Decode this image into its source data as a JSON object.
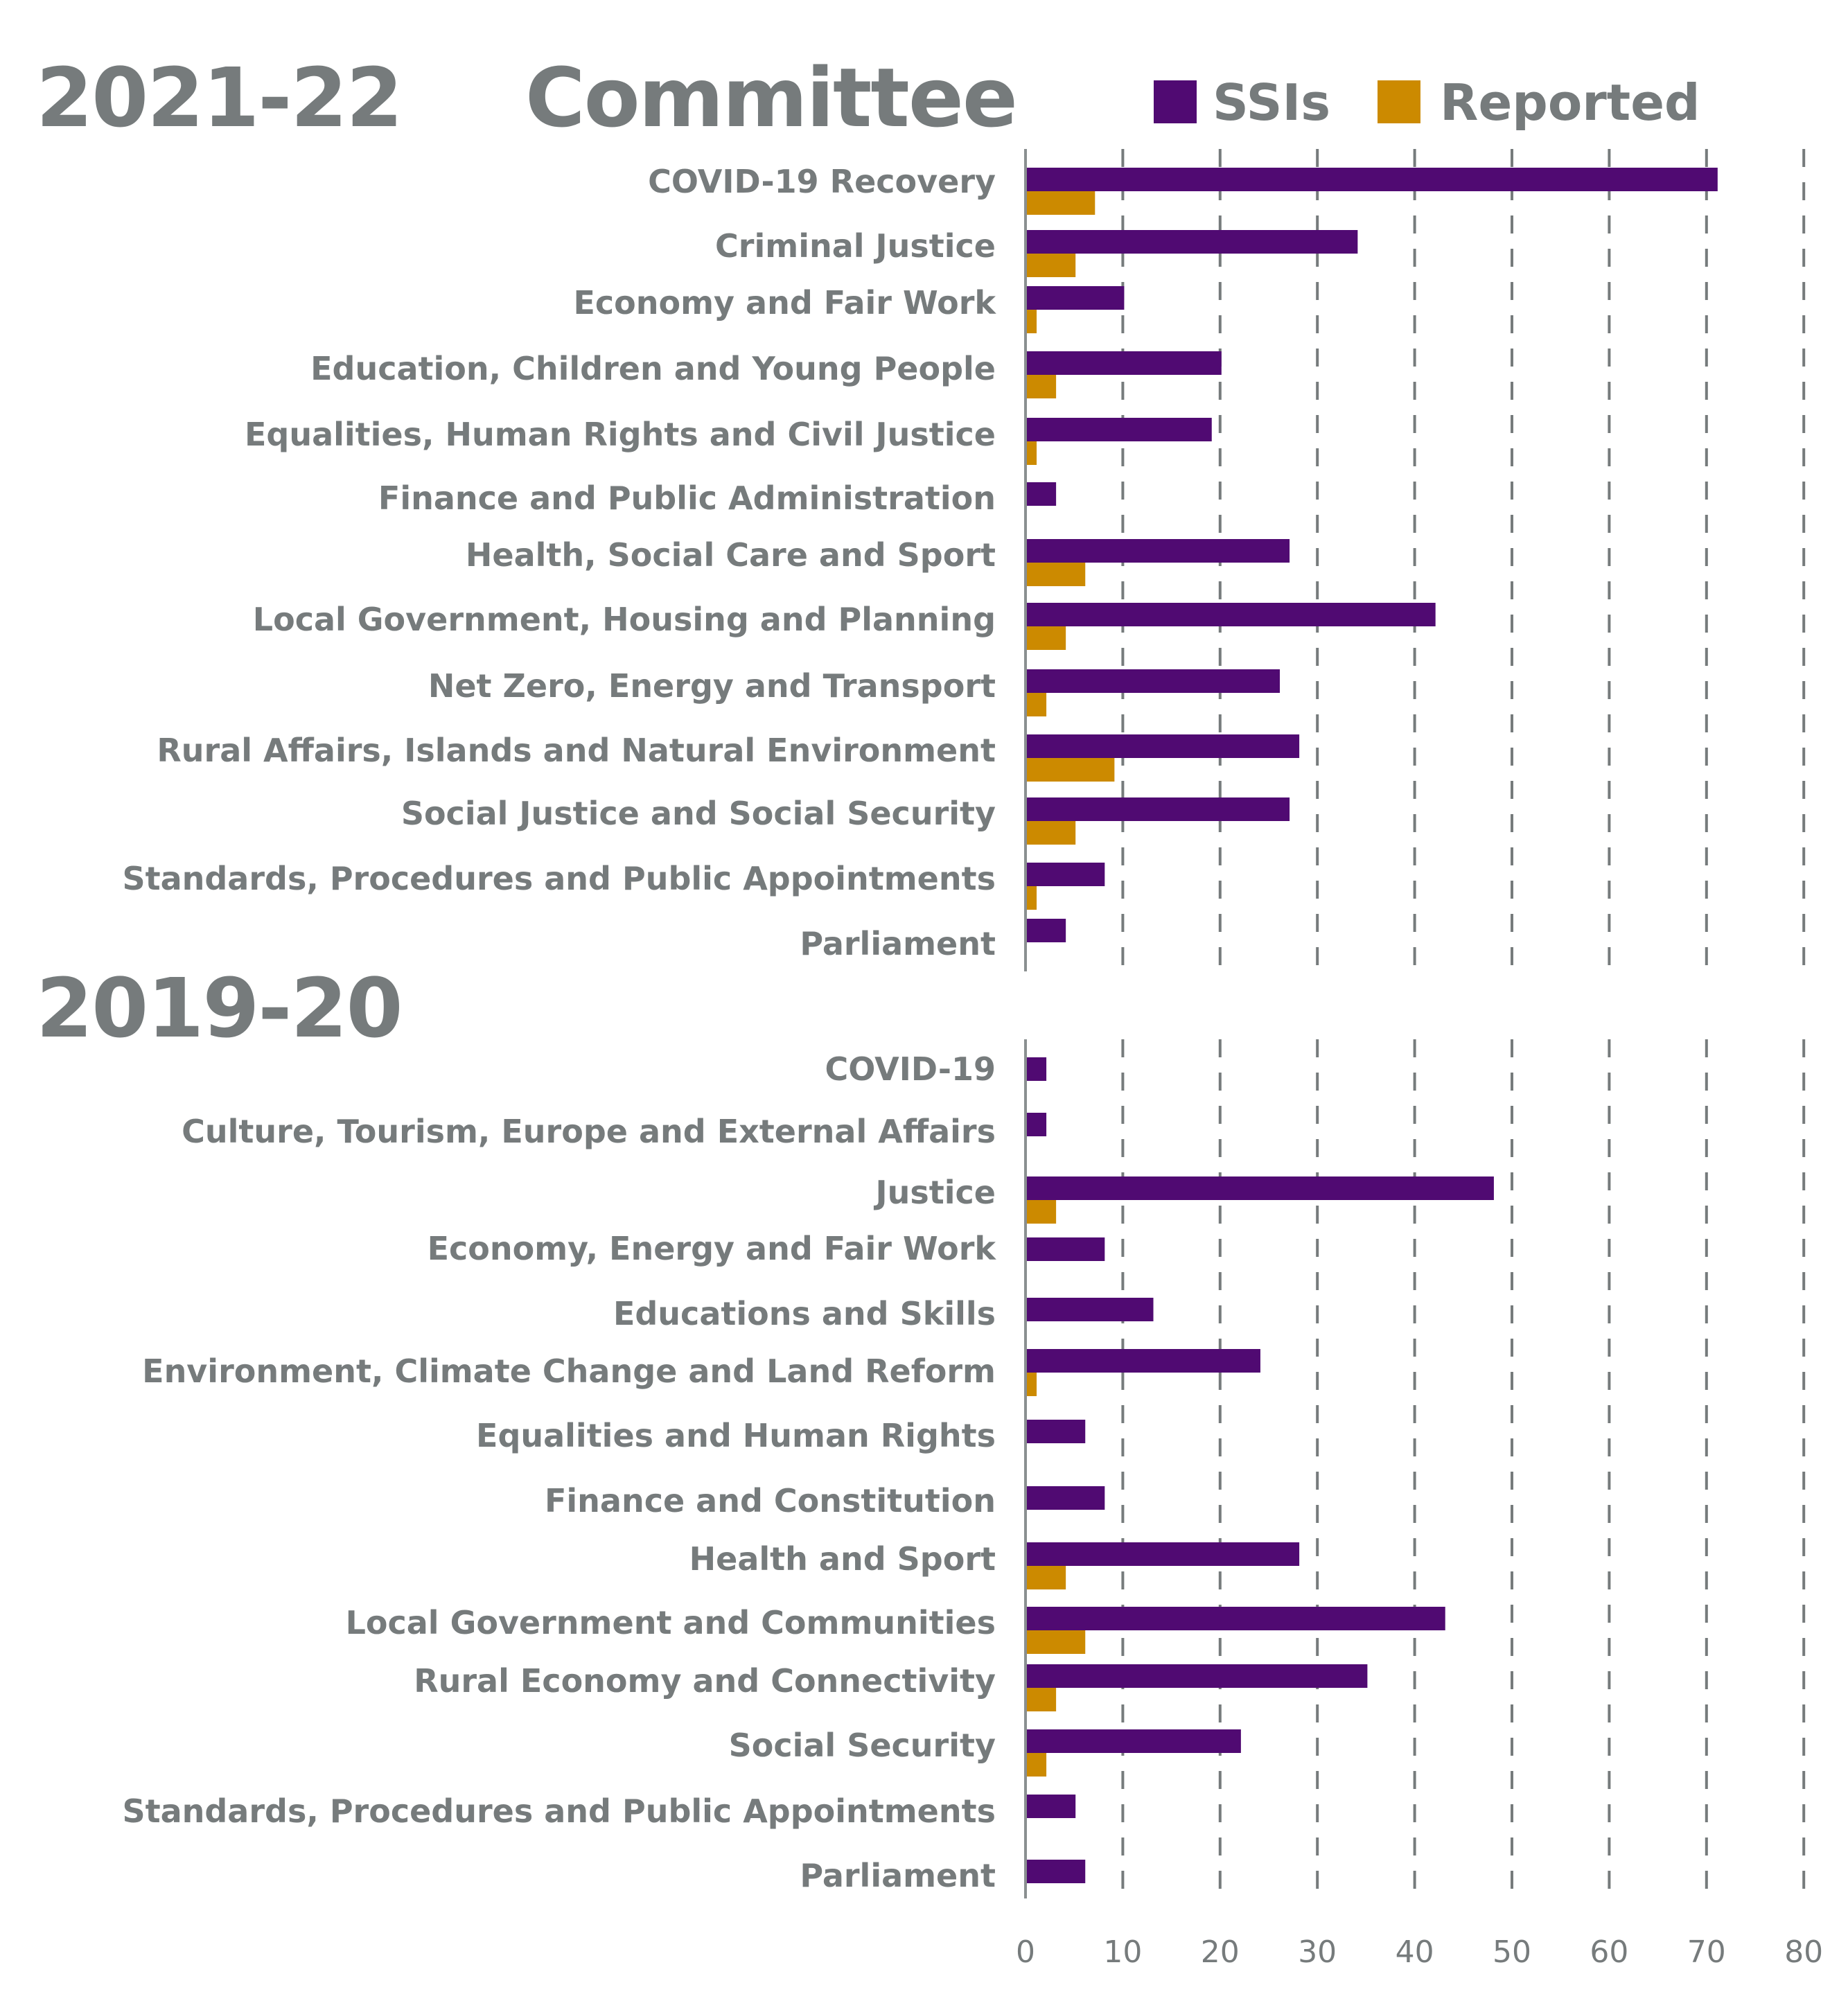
{
  "chart_data": [
    {
      "type": "bar",
      "orientation": "horizontal",
      "title": "2021-22",
      "categories": [
        "COVID-19 Recovery",
        "Criminal Justice",
        "Economy and Fair Work",
        "Education, Children and Young People",
        "Equalities, Human Rights and Civil Justice",
        "Finance and Public Administration",
        "Health, Social Care and Sport",
        "Local Government, Housing and Planning",
        "Net Zero, Energy and Transport",
        "Rural Affairs, Islands and Natural Environment",
        "Social Justice and Social Security",
        "Standards, Procedures and Public Appointments",
        "Parliament"
      ],
      "series": [
        {
          "name": "SSIs",
          "color": "#500a72",
          "values": [
            71,
            34,
            10,
            20,
            19,
            3,
            27,
            42,
            26,
            28,
            27,
            8,
            4
          ]
        },
        {
          "name": "Reported",
          "color": "#cc8a00",
          "values": [
            7,
            5,
            1,
            3,
            1,
            0,
            6,
            4,
            2,
            9,
            5,
            1,
            0
          ]
        }
      ],
      "xlim": [
        0,
        80
      ],
      "grid": true
    },
    {
      "type": "bar",
      "orientation": "horizontal",
      "title": "2019-20",
      "categories": [
        "COVID-19",
        "Culture, Tourism, Europe and External Affairs",
        "Justice",
        "Economy, Energy and Fair Work",
        "Educations and Skills",
        "Environment, Climate Change and Land Reform",
        "Equalities and Human Rights",
        "Finance and Constitution",
        "Health and Sport",
        "Local Government and Communities",
        "Rural Economy and Connectivity",
        "Social Security",
        "Standards, Procedures and Public Appointments",
        "Parliament "
      ],
      "series": [
        {
          "name": "SSIs",
          "color": "#500a72",
          "values": [
            2,
            2,
            48,
            8,
            13,
            24,
            6,
            8,
            28,
            43,
            35,
            22,
            5,
            6
          ]
        },
        {
          "name": "Reported",
          "color": "#cc8a00",
          "values": [
            0,
            0,
            3,
            0,
            0,
            1,
            0,
            0,
            4,
            6,
            3,
            2,
            0,
            0
          ]
        }
      ],
      "xlim": [
        0,
        80
      ],
      "xticks": [
        "0",
        "10",
        "20",
        "30",
        "40",
        "50",
        "60",
        "70",
        "80"
      ],
      "grid": true
    }
  ],
  "header": {
    "period_top": "2021-22",
    "column_title": "Committee",
    "period_bottom": "2019-20"
  },
  "legend": [
    {
      "label": "SSIs",
      "color": "#500a72"
    },
    {
      "label": "Reported",
      "color": "#cc8a00"
    }
  ]
}
